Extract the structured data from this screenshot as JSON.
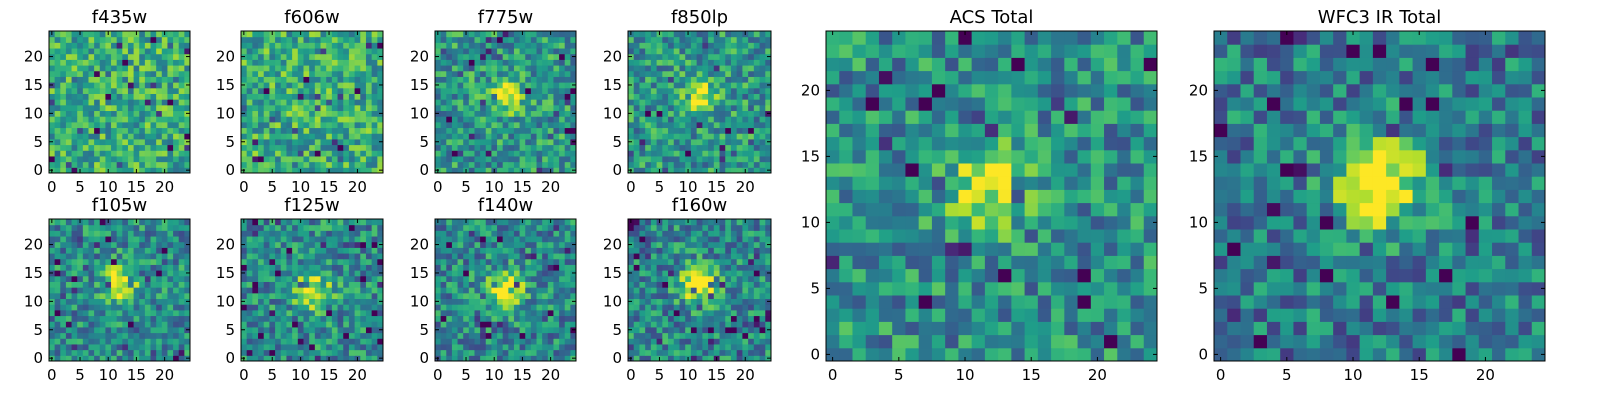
{
  "chart_data": [
    {
      "type": "heatmap",
      "title": "f435w",
      "xlim": [
        0,
        24
      ],
      "ylim": [
        0,
        24
      ],
      "xticks": [
        0,
        5,
        10,
        15,
        20
      ],
      "yticks": [
        0,
        5,
        10,
        15,
        20
      ],
      "colormap": "viridis",
      "grid": false,
      "source_blob": null
    },
    {
      "type": "heatmap",
      "title": "f606w",
      "xlim": [
        0,
        24
      ],
      "ylim": [
        0,
        24
      ],
      "xticks": [
        0,
        5,
        10,
        15,
        20
      ],
      "yticks": [
        0,
        5,
        10,
        15,
        20
      ],
      "colormap": "viridis",
      "grid": false,
      "source_blob": null
    },
    {
      "type": "heatmap",
      "title": "f775w",
      "xlim": [
        0,
        24
      ],
      "ylim": [
        0,
        24
      ],
      "xticks": [
        0,
        5,
        10,
        15,
        20
      ],
      "yticks": [
        0,
        5,
        10,
        15,
        20
      ],
      "colormap": "viridis",
      "grid": false,
      "source_blob": {
        "x": 12,
        "y": 13,
        "strength": 0.35
      }
    },
    {
      "type": "heatmap",
      "title": "f850lp",
      "xlim": [
        0,
        24
      ],
      "ylim": [
        0,
        24
      ],
      "xticks": [
        0,
        5,
        10,
        15,
        20
      ],
      "yticks": [
        0,
        5,
        10,
        15,
        20
      ],
      "colormap": "viridis",
      "grid": false,
      "source_blob": {
        "x": 12,
        "y": 13,
        "strength": 0.35
      }
    },
    {
      "type": "heatmap",
      "title": "f105w",
      "xlim": [
        0,
        24
      ],
      "ylim": [
        0,
        24
      ],
      "xticks": [
        0,
        5,
        10,
        15,
        20
      ],
      "yticks": [
        0,
        5,
        10,
        15,
        20
      ],
      "colormap": "viridis",
      "grid": false,
      "source_blob": {
        "x": 12,
        "y": 13,
        "strength": 0.55
      }
    },
    {
      "type": "heatmap",
      "title": "f125w",
      "xlim": [
        0,
        24
      ],
      "ylim": [
        0,
        24
      ],
      "xticks": [
        0,
        5,
        10,
        15,
        20
      ],
      "yticks": [
        0,
        5,
        10,
        15,
        20
      ],
      "colormap": "viridis",
      "grid": false,
      "source_blob": {
        "x": 12,
        "y": 12,
        "strength": 0.55
      }
    },
    {
      "type": "heatmap",
      "title": "f140w",
      "xlim": [
        0,
        24
      ],
      "ylim": [
        0,
        24
      ],
      "xticks": [
        0,
        5,
        10,
        15,
        20
      ],
      "yticks": [
        0,
        5,
        10,
        15,
        20
      ],
      "colormap": "viridis",
      "grid": false,
      "source_blob": {
        "x": 12,
        "y": 12,
        "strength": 0.6
      }
    },
    {
      "type": "heatmap",
      "title": "f160w",
      "xlim": [
        0,
        24
      ],
      "ylim": [
        0,
        24
      ],
      "xticks": [
        0,
        5,
        10,
        15,
        20
      ],
      "yticks": [
        0,
        5,
        10,
        15,
        20
      ],
      "colormap": "viridis",
      "grid": false,
      "source_blob": {
        "x": 12,
        "y": 13,
        "strength": 0.6
      }
    },
    {
      "type": "heatmap",
      "title": "ACS Total",
      "xlim": [
        0,
        24
      ],
      "ylim": [
        0,
        24
      ],
      "xticks": [
        0,
        5,
        10,
        15,
        20
      ],
      "yticks": [
        0,
        5,
        10,
        15,
        20
      ],
      "colormap": "viridis",
      "grid": false,
      "source_blob": {
        "x": 12,
        "y": 13,
        "strength": 0.5
      }
    },
    {
      "type": "heatmap",
      "title": "WFC3 IR Total",
      "xlim": [
        0,
        24
      ],
      "ylim": [
        0,
        24
      ],
      "xticks": [
        0,
        5,
        10,
        15,
        20
      ],
      "yticks": [
        0,
        5,
        10,
        15,
        20
      ],
      "colormap": "viridis",
      "grid": false,
      "source_blob": {
        "x": 12,
        "y": 13,
        "strength": 0.8
      }
    }
  ]
}
